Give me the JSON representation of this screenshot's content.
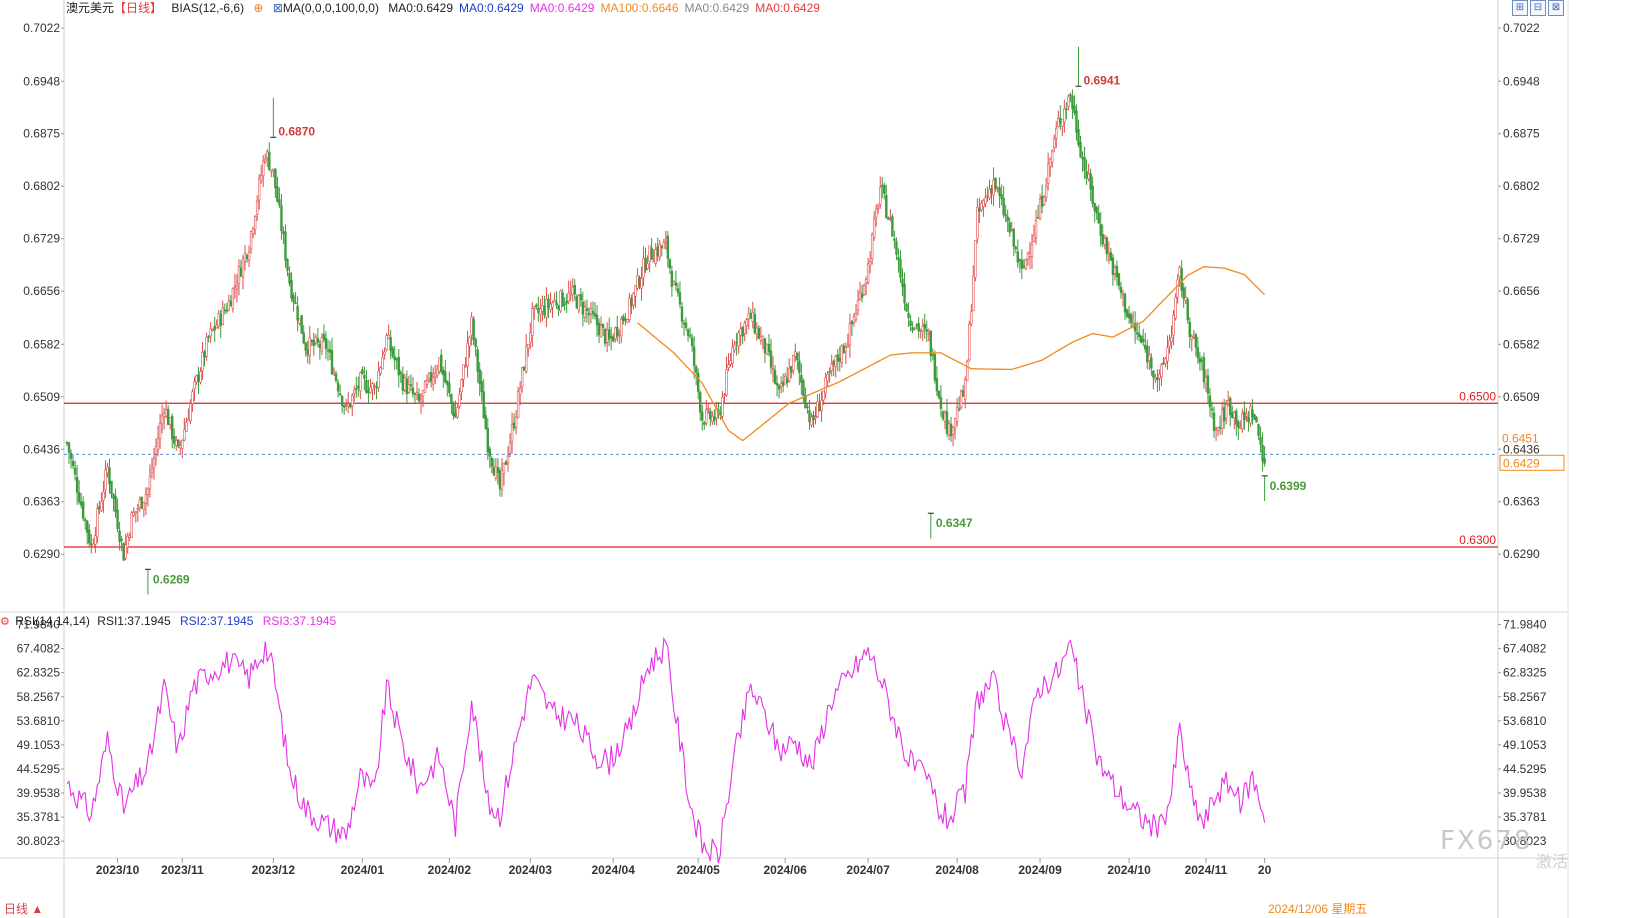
{
  "header": {
    "symbol": "澳元美元",
    "period": "【日线】",
    "indicator": "BIAS(12,-6,6)",
    "ma_label": "MA(0,0,0,100,0,0)",
    "ma_values": [
      {
        "text": "MA0:0.6429",
        "color": "#222222"
      },
      {
        "text": "MA0:0.6429",
        "color": "#1f3fc7"
      },
      {
        "text": "MA0:0.6429",
        "color": "#e632e6"
      },
      {
        "text": "MA100:0.6646",
        "color": "#f08a1c"
      },
      {
        "text": "MA0:0.6429",
        "color": "#888888"
      },
      {
        "text": "MA0:0.6429",
        "color": "#e03c3c"
      }
    ],
    "window_icons": [
      "⊞",
      "⊟",
      "⊠"
    ]
  },
  "rsi_header": {
    "label": "RSI(14,14,14)",
    "rsi1": "RSI1:37.1945",
    "rsi2": "RSI2:37.1945",
    "rsi3": "RSI3:37.1945"
  },
  "footer": {
    "period_button": "日线 ▲",
    "current_date": "2024/12/06 星期五"
  },
  "watermark": {
    "text": "FX678",
    "sub": "激活"
  },
  "colors": {
    "up": "#e04b4b",
    "down": "#3c9b3c",
    "ma100": "#f08a1c",
    "rsi": "#e632e6",
    "hline": "#e02020",
    "current": "#3c7ac8"
  },
  "chart_data": [
    {
      "type": "candlestick",
      "title": "澳元美元【日线】",
      "y_ticks": [
        "0.7022",
        "0.6948",
        "0.6875",
        "0.6802",
        "0.6729",
        "0.6656",
        "0.6582",
        "0.6509",
        "0.6436",
        "0.6363",
        "0.6290"
      ],
      "ylim": [
        0.6268,
        0.7036
      ],
      "x_ticks": [
        "2023/10",
        "2023/11",
        "2023/12",
        "2024/01",
        "2024/02",
        "2024/03",
        "2024/04",
        "2024/05",
        "2024/06",
        "2024/07",
        "2024/08",
        "2024/09",
        "2024/10",
        "2024/11",
        "20"
      ],
      "horizontal_lines": [
        {
          "value": 0.65,
          "label": "0.6500"
        },
        {
          "value": 0.63,
          "label": "0.6300"
        }
      ],
      "current": {
        "close_label": "0.6429",
        "high_label": "0.6451",
        "value": 0.6429
      },
      "annotations": [
        {
          "label": "0.6269",
          "value": 0.6269,
          "kind": "low",
          "date": "2023/10/26"
        },
        {
          "label": "0.6870",
          "value": 0.687,
          "kind": "high",
          "date": "2023/12/28"
        },
        {
          "label": "0.6347",
          "value": 0.6347,
          "kind": "low",
          "date": "2024/08/05"
        },
        {
          "label": "0.6941",
          "value": 0.6941,
          "kind": "high",
          "date": "2024/09/30"
        },
        {
          "label": "0.6399",
          "value": 0.6399,
          "kind": "low",
          "date": "2024/12/06"
        }
      ],
      "series": [
        {
          "name": "MA100",
          "kind": "line",
          "anchors": [
            [
              0,
              0.6612
            ],
            [
              18,
              0.657
            ],
            [
              32,
              0.6528
            ],
            [
              45,
              0.6462
            ],
            [
              52,
              0.6448
            ],
            [
              60,
              0.6466
            ],
            [
              75,
              0.65
            ],
            [
              100,
              0.653
            ],
            [
              125,
              0.6567
            ],
            [
              135,
              0.657
            ],
            [
              150,
              0.657
            ],
            [
              165,
              0.6548
            ],
            [
              185,
              0.6547
            ],
            [
              200,
              0.656
            ],
            [
              215,
              0.6585
            ],
            [
              225,
              0.6597
            ],
            [
              235,
              0.6592
            ],
            [
              250,
              0.6614
            ],
            [
              262,
              0.6649
            ],
            [
              272,
              0.6678
            ],
            [
              280,
              0.669
            ],
            [
              290,
              0.6688
            ],
            [
              300,
              0.6679
            ],
            [
              310,
              0.6651
            ]
          ]
        },
        {
          "name": "OHLC",
          "kind": "candles",
          "anchors": [
            [
              0,
              0.6445
            ],
            [
              12,
              0.63
            ],
            [
              20,
              0.641
            ],
            [
              28,
              0.629
            ],
            [
              32,
              0.634
            ],
            [
              40,
              0.638
            ],
            [
              48,
              0.6497
            ],
            [
              55,
              0.643
            ],
            [
              62,
              0.651
            ],
            [
              70,
              0.659
            ],
            [
              80,
              0.664
            ],
            [
              90,
              0.6722
            ],
            [
              98,
              0.685
            ],
            [
              102,
              0.682
            ],
            [
              110,
              0.667
            ],
            [
              118,
              0.658
            ],
            [
              128,
              0.658
            ],
            [
              138,
              0.649
            ],
            [
              145,
              0.653
            ],
            [
              152,
              0.652
            ],
            [
              158,
              0.659
            ],
            [
              166,
              0.653
            ],
            [
              174,
              0.65
            ],
            [
              184,
              0.656
            ],
            [
              192,
              0.648
            ],
            [
              200,
              0.661
            ],
            [
              208,
              0.6445
            ],
            [
              214,
              0.638
            ],
            [
              222,
              0.649
            ],
            [
              230,
              0.662
            ],
            [
              240,
              0.664
            ],
            [
              250,
              0.665
            ],
            [
              262,
              0.661
            ],
            [
              268,
              0.6585
            ],
            [
              278,
              0.6634
            ],
            [
              287,
              0.6705
            ],
            [
              296,
              0.672
            ],
            [
              300,
              0.666
            ],
            [
              308,
              0.659
            ],
            [
              314,
              0.648
            ],
            [
              322,
              0.648
            ],
            [
              330,
              0.659
            ],
            [
              338,
              0.662
            ],
            [
              346,
              0.657
            ],
            [
              352,
              0.651
            ],
            [
              360,
              0.6565
            ],
            [
              368,
              0.647
            ],
            [
              378,
              0.6545
            ],
            [
              386,
              0.659
            ],
            [
              396,
              0.669
            ],
            [
              402,
              0.68
            ],
            [
              408,
              0.674
            ],
            [
              416,
              0.662
            ],
            [
              426,
              0.659
            ],
            [
              432,
              0.65
            ],
            [
              436,
              0.646
            ],
            [
              444,
              0.652
            ],
            [
              450,
              0.676
            ],
            [
              458,
              0.681
            ],
            [
              466,
              0.674
            ],
            [
              472,
              0.668
            ],
            [
              480,
              0.676
            ],
            [
              490,
              0.689
            ],
            [
              496,
              0.693
            ],
            [
              502,
              0.684
            ],
            [
              510,
              0.675
            ],
            [
              518,
              0.668
            ],
            [
              526,
              0.661
            ],
            [
              532,
              0.658
            ],
            [
              540,
              0.653
            ],
            [
              546,
              0.66
            ],
            [
              550,
              0.668
            ],
            [
              556,
              0.659
            ],
            [
              562,
              0.654
            ],
            [
              568,
              0.646
            ],
            [
              574,
              0.65
            ],
            [
              580,
              0.647
            ],
            [
              586,
              0.649
            ],
            [
              592,
              0.642
            ]
          ]
        }
      ]
    },
    {
      "type": "line",
      "title": "RSI(14,14,14)",
      "y_ticks": [
        "71.9840",
        "67.4082",
        "62.8325",
        "58.2567",
        "53.6810",
        "49.1053",
        "44.5295",
        "39.9538",
        "35.3781",
        "30.8023"
      ],
      "ylim": [
        27.6,
        73.8
      ],
      "series": [
        {
          "name": "RSI1",
          "current": 37.1945,
          "anchors": [
            [
              0,
              42
            ],
            [
              12,
              36
            ],
            [
              20,
              50
            ],
            [
              28,
              37
            ],
            [
              32,
              40
            ],
            [
              40,
              45
            ],
            [
              48,
              60
            ],
            [
              55,
              48
            ],
            [
              62,
              60
            ],
            [
              70,
              63
            ],
            [
              80,
              65
            ],
            [
              90,
              62
            ],
            [
              98,
              68
            ],
            [
              102,
              63
            ],
            [
              110,
              44
            ],
            [
              118,
              37
            ],
            [
              128,
              34
            ],
            [
              138,
              32
            ],
            [
              145,
              43
            ],
            [
              152,
              40
            ],
            [
              158,
              60
            ],
            [
              166,
              49
            ],
            [
              174,
              41
            ],
            [
              184,
              47
            ],
            [
              192,
              34
            ],
            [
              200,
              58
            ],
            [
              208,
              38
            ],
            [
              214,
              36
            ],
            [
              222,
              50
            ],
            [
              230,
              62
            ],
            [
              240,
              55
            ],
            [
              250,
              54
            ],
            [
              262,
              47
            ],
            [
              268,
              46
            ],
            [
              278,
              52
            ],
            [
              287,
              64
            ],
            [
              296,
              68
            ],
            [
              300,
              57
            ],
            [
              308,
              38
            ],
            [
              314,
              30
            ],
            [
              322,
              28
            ],
            [
              330,
              47
            ],
            [
              338,
              60
            ],
            [
              346,
              54
            ],
            [
              352,
              48
            ],
            [
              360,
              50
            ],
            [
              368,
              45
            ],
            [
              378,
              58
            ],
            [
              386,
              62
            ],
            [
              396,
              67
            ],
            [
              402,
              62
            ],
            [
              408,
              55
            ],
            [
              416,
              46
            ],
            [
              426,
              42
            ],
            [
              432,
              36
            ],
            [
              436,
              35
            ],
            [
              444,
              40
            ],
            [
              450,
              58
            ],
            [
              458,
              61
            ],
            [
              466,
              50
            ],
            [
              472,
              45
            ],
            [
              480,
              60
            ],
            [
              490,
              63
            ],
            [
              496,
              68
            ],
            [
              502,
              58
            ],
            [
              510,
              46
            ],
            [
              518,
              41
            ],
            [
              526,
              37
            ],
            [
              532,
              35
            ],
            [
              540,
              33
            ],
            [
              546,
              40
            ],
            [
              550,
              52
            ],
            [
              556,
              39
            ],
            [
              562,
              34
            ],
            [
              568,
              40
            ],
            [
              574,
              42
            ],
            [
              580,
              38
            ],
            [
              586,
              43
            ],
            [
              592,
              36
            ]
          ]
        }
      ]
    }
  ]
}
